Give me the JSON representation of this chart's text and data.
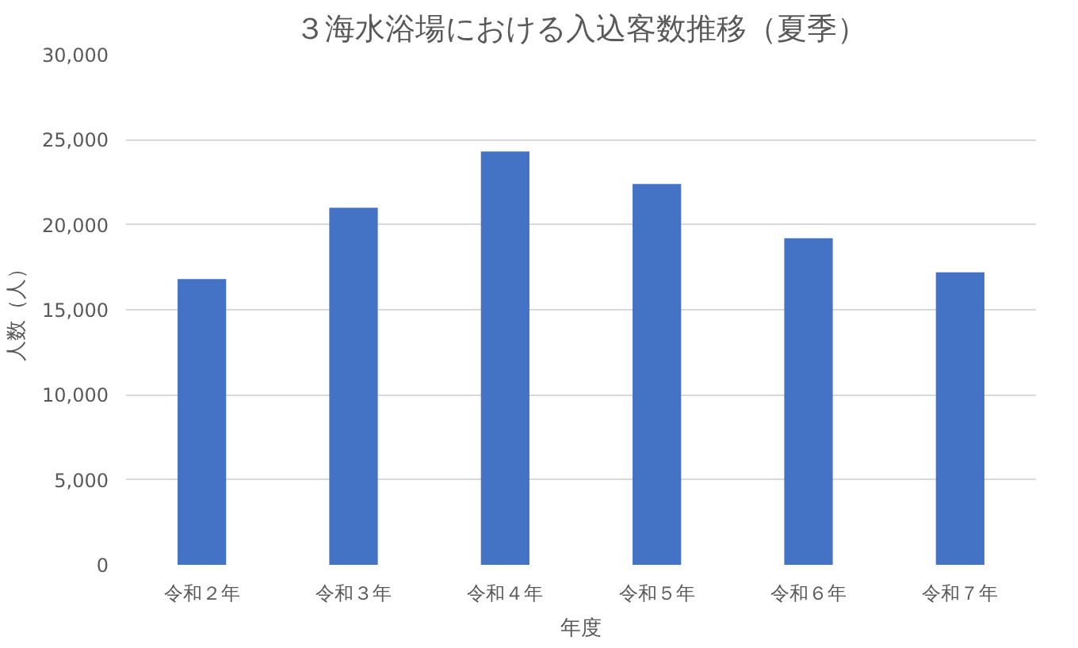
{
  "chart_data": {
    "type": "bar",
    "title": "３海水浴場における入込客数推移（夏季）",
    "xlabel": "年度",
    "ylabel": "人数（人）",
    "categories": [
      "令和２年",
      "令和３年",
      "令和４年",
      "令和５年",
      "令和６年",
      "令和７年"
    ],
    "values": [
      16800,
      21000,
      24300,
      22400,
      19200,
      17200
    ],
    "color": "#4472c4",
    "ylim": [
      0,
      30000
    ],
    "yticks": [
      {
        "value": 0,
        "label": "0"
      },
      {
        "value": 5000,
        "label": "5,000"
      },
      {
        "value": 10000,
        "label": "10,000"
      },
      {
        "value": 15000,
        "label": "15,000"
      },
      {
        "value": 20000,
        "label": "20,000"
      },
      {
        "value": 25000,
        "label": "25,000"
      },
      {
        "value": 30000,
        "label": "30,000"
      }
    ],
    "grid": "y"
  }
}
